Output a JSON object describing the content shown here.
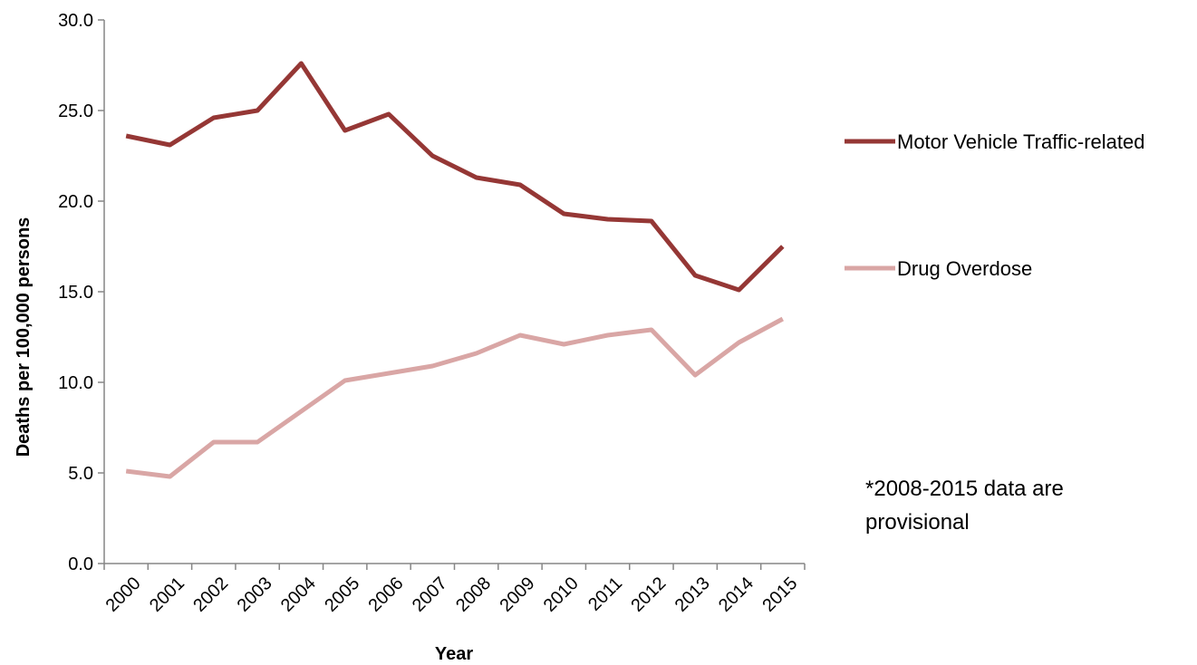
{
  "chart_data": {
    "type": "line",
    "categories": [
      "2000",
      "2001",
      "2002",
      "2003",
      "2004",
      "2005",
      "2006",
      "2007",
      "2008",
      "2009",
      "2010",
      "2011",
      "2012",
      "2013",
      "2014",
      "2015"
    ],
    "series": [
      {
        "name": "Motor Vehicle Traffic-related",
        "color": "#953735",
        "values": [
          23.6,
          23.1,
          24.6,
          25.0,
          27.6,
          23.9,
          24.8,
          22.5,
          21.3,
          20.9,
          19.3,
          19.0,
          18.9,
          15.9,
          15.1,
          17.5
        ]
      },
      {
        "name": "Drug Overdose",
        "color": "#D9A6A5",
        "values": [
          5.1,
          4.8,
          6.7,
          6.7,
          8.4,
          10.1,
          10.5,
          10.9,
          11.6,
          12.6,
          12.1,
          12.6,
          12.9,
          10.4,
          12.2,
          13.5
        ]
      }
    ],
    "title": "",
    "xlabel": "Year",
    "ylabel": "Deaths per 100,000 persons",
    "ylim": [
      0,
      30
    ],
    "yticks": [
      "0.0",
      "5.0",
      "10.0",
      "15.0",
      "20.0",
      "25.0",
      "30.0"
    ],
    "grid": false,
    "legend_position": "right",
    "annotation": {
      "line1": "*2008-2015 data are",
      "line2": "provisional"
    }
  }
}
